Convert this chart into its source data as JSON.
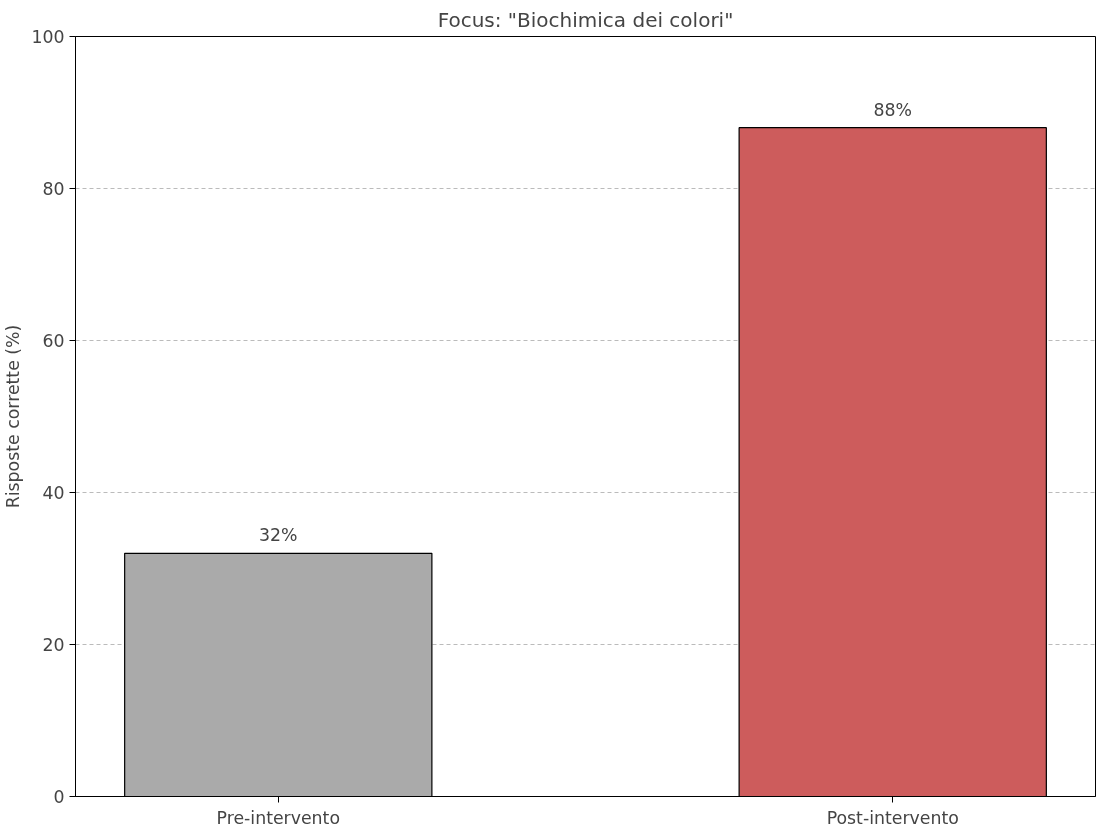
{
  "chart_data": {
    "type": "bar",
    "title": "Focus: \"Biochimica dei colori\"",
    "ylabel": "Risposte corrette (%)",
    "categories": [
      "Pre-intervento",
      "Post-intervento"
    ],
    "values": [
      32,
      88
    ],
    "colors": [
      "#aaaaaa",
      "#cd5c5c"
    ],
    "value_labels": [
      "32%",
      "88%"
    ],
    "ylim": [
      0,
      100
    ],
    "yticks": [
      0,
      20,
      40,
      60,
      80,
      100
    ],
    "grid": "y"
  }
}
